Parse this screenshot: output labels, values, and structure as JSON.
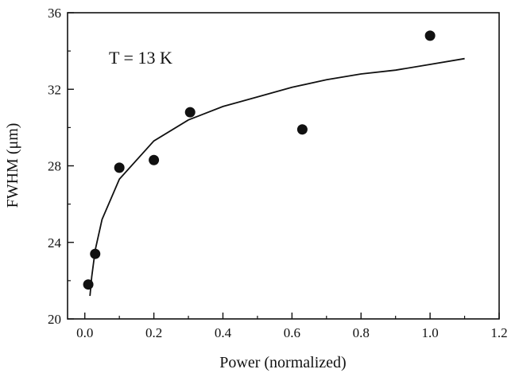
{
  "chart_data": {
    "type": "scatter",
    "title": "",
    "xlabel": "Power (normalized)",
    "ylabel": "FWHM (μm)",
    "xlim": [
      -0.05,
      1.2
    ],
    "ylim": [
      20,
      36
    ],
    "x_ticks": [
      0.0,
      0.2,
      0.4,
      0.6,
      0.8,
      1.0,
      1.2
    ],
    "x_tick_labels": [
      "0.0",
      "0.2",
      "0.4",
      "0.6",
      "0.8",
      "1.0",
      "1.2"
    ],
    "y_ticks": [
      20,
      24,
      28,
      32,
      36
    ],
    "y_tick_labels": [
      "20",
      "24",
      "28",
      "32",
      "36"
    ],
    "annotation": "T = 13 K",
    "grid": false,
    "legend": "none",
    "series": [
      {
        "kind": "points",
        "x": [
          0.01,
          0.03,
          0.1,
          0.2,
          0.305,
          0.63,
          1.0
        ],
        "y": [
          21.8,
          23.4,
          27.9,
          28.3,
          30.8,
          29.9,
          34.8
        ]
      },
      {
        "kind": "fit-line",
        "x": [
          0.015,
          0.02,
          0.03,
          0.05,
          0.1,
          0.2,
          0.3,
          0.4,
          0.5,
          0.6,
          0.7,
          0.8,
          0.9,
          1.0,
          1.1
        ],
        "y": [
          21.2,
          22.2,
          23.6,
          25.2,
          27.3,
          29.3,
          30.4,
          31.1,
          31.6,
          32.1,
          32.5,
          32.8,
          33.0,
          33.3,
          33.6
        ]
      }
    ]
  }
}
